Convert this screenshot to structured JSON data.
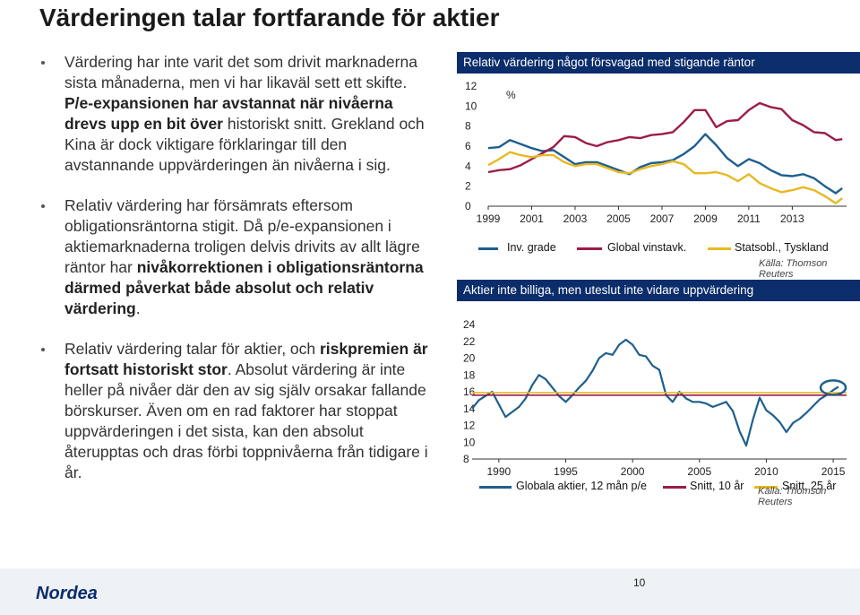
{
  "slide": {
    "title": "Värderingen talar fortfarande för aktier",
    "page_number": "10",
    "logo_text": "Nordea"
  },
  "bullets": [
    {
      "segments": [
        {
          "t": "Värdering har inte varit det som drivit marknaderna sista månaderna, men vi har likaväl sett ett skifte. ",
          "b": false
        },
        {
          "t": "P/e-expansionen har avstannat när nivåerna drevs upp en bit över",
          "b": true
        },
        {
          "t": " historiskt snitt. Grekland och Kina är dock viktigare förklaringar till den avstannande uppvärderingen än nivåerna i sig.",
          "b": false
        }
      ]
    },
    {
      "segments": [
        {
          "t": "Relativ värdering har försämrats eftersom obligationsräntorna stigit. Då p/e-expansionen i aktiemarknaderna troligen delvis drivits av allt lägre räntor har ",
          "b": false
        },
        {
          "t": "nivåkorrektionen i obligationsräntorna därmed påverkat både absolut och relativ värdering",
          "b": true
        },
        {
          "t": ".",
          "b": false
        }
      ]
    },
    {
      "segments": [
        {
          "t": "Relativ värdering talar för aktier, och ",
          "b": false
        },
        {
          "t": "riskpremien är fortsatt historiskt stor",
          "b": true
        },
        {
          "t": ". Absolut värdering är inte heller på nivåer där den av sig själv orsakar fallande börskurser. Även om en rad faktorer har stoppat uppvärderingen i det sista, kan den absolut återupptas och dras förbi toppnivåerna från tidigare i år.",
          "b": false
        }
      ]
    }
  ],
  "chart_data": [
    {
      "type": "line",
      "title": "Relativ värdering något försvagad med stigande räntor",
      "ylabel": "%",
      "source": "Källa: Thomson Reuters",
      "xlim": [
        1999,
        2015.5
      ],
      "ylim": [
        0,
        12
      ],
      "xticks": [
        1999,
        2001,
        2003,
        2005,
        2007,
        2009,
        2011,
        2013
      ],
      "xtick_labels": [
        "1999",
        "2001",
        "2003",
        "2005",
        "2007",
        "2009",
        "2011",
        "2013"
      ],
      "yticks": [
        0,
        2,
        4,
        6,
        8,
        10,
        12
      ],
      "ytick_labels": [
        "0",
        "2",
        "4",
        "6",
        "8",
        "10",
        "12"
      ],
      "series": [
        {
          "name": "Inv. grade",
          "color": "#1d5f8f",
          "x": [
            1999,
            1999.5,
            2000,
            2000.5,
            2001,
            2001.5,
            2002,
            2002.5,
            2003,
            2003.5,
            2004,
            2004.5,
            2005,
            2005.5,
            2006,
            2006.5,
            2007,
            2007.5,
            2008,
            2008.5,
            2009,
            2009.5,
            2010,
            2010.5,
            2011,
            2011.5,
            2012,
            2012.5,
            2013,
            2013.5,
            2014,
            2014.5,
            2015,
            2015.3
          ],
          "y": [
            5.8,
            5.9,
            6.6,
            6.2,
            5.8,
            5.5,
            5.6,
            4.9,
            4.2,
            4.4,
            4.4,
            4.0,
            3.6,
            3.2,
            3.9,
            4.3,
            4.4,
            4.6,
            5.2,
            6.0,
            7.2,
            6.1,
            4.8,
            4.0,
            4.7,
            4.3,
            3.6,
            3.1,
            3.0,
            3.2,
            2.8,
            2.0,
            1.3,
            1.8
          ]
        },
        {
          "name": "Global vinstavk.",
          "color": "#9b1c48",
          "x": [
            1999,
            1999.5,
            2000,
            2000.5,
            2001,
            2001.5,
            2002,
            2002.5,
            2003,
            2003.5,
            2004,
            2004.5,
            2005,
            2005.5,
            2006,
            2006.5,
            2007,
            2007.5,
            2008,
            2008.5,
            2009,
            2009.5,
            2010,
            2010.5,
            2011,
            2011.5,
            2012,
            2012.5,
            2013,
            2013.5,
            2014,
            2014.5,
            2015,
            2015.3
          ],
          "y": [
            3.4,
            3.6,
            3.7,
            4.1,
            4.7,
            5.3,
            5.9,
            7.0,
            6.9,
            6.3,
            6.0,
            6.4,
            6.6,
            6.9,
            6.8,
            7.1,
            7.2,
            7.4,
            8.4,
            9.6,
            9.6,
            7.9,
            8.5,
            8.6,
            9.6,
            10.3,
            9.9,
            9.7,
            8.6,
            8.1,
            7.4,
            7.3,
            6.6,
            6.7
          ]
        },
        {
          "name": "Statsobl., Tyskland",
          "color": "#e8b923",
          "x": [
            1999,
            1999.5,
            2000,
            2000.5,
            2001,
            2001.5,
            2002,
            2002.5,
            2003,
            2003.5,
            2004,
            2004.5,
            2005,
            2005.5,
            2006,
            2006.5,
            2007,
            2007.5,
            2008,
            2008.5,
            2009,
            2009.5,
            2010,
            2010.5,
            2011,
            2011.5,
            2012,
            2012.5,
            2013,
            2013.5,
            2014,
            2014.5,
            2015,
            2015.3
          ],
          "y": [
            4.1,
            4.7,
            5.4,
            5.1,
            4.9,
            5.1,
            5.1,
            4.4,
            4.0,
            4.2,
            4.2,
            3.8,
            3.4,
            3.3,
            3.7,
            4.0,
            4.2,
            4.5,
            4.2,
            3.3,
            3.3,
            3.4,
            3.1,
            2.5,
            3.2,
            2.3,
            1.8,
            1.4,
            1.6,
            1.9,
            1.6,
            1.0,
            0.3,
            0.8
          ]
        }
      ]
    },
    {
      "type": "line",
      "title": "Aktier inte billiga, men uteslut inte vidare uppvärdering",
      "source": "Källa: Thomson Reuters",
      "xlim": [
        1988,
        2016
      ],
      "ylim": [
        8,
        24
      ],
      "xticks": [
        1990,
        1995,
        2000,
        2005,
        2010,
        2015
      ],
      "xtick_labels": [
        "1990",
        "1995",
        "2000",
        "2005",
        "2010",
        "2015"
      ],
      "yticks": [
        8,
        10,
        12,
        14,
        16,
        18,
        20,
        22,
        24
      ],
      "ytick_labels": [
        "8",
        "10",
        "12",
        "14",
        "16",
        "18",
        "20",
        "22",
        "24"
      ],
      "series": [
        {
          "name": "Globala aktier, 12 mån p/e",
          "color": "#1d5f8f",
          "x": [
            1988,
            1988.5,
            1989,
            1989.5,
            1990,
            1990.5,
            1991,
            1991.5,
            1992,
            1992.5,
            1993,
            1993.5,
            1994,
            1994.5,
            1995,
            1995.5,
            1996,
            1996.5,
            1997,
            1997.5,
            1998,
            1998.5,
            1999,
            1999.5,
            2000,
            2000.5,
            2001,
            2001.5,
            2002,
            2002.5,
            2003,
            2003.5,
            2004,
            2004.5,
            2005,
            2005.5,
            2006,
            2006.5,
            2007,
            2007.5,
            2008,
            2008.5,
            2009,
            2009.5,
            2010,
            2010.5,
            2011,
            2011.5,
            2012,
            2012.5,
            2013,
            2013.5,
            2014,
            2014.5,
            2015,
            2015.4
          ],
          "y": [
            14,
            15,
            15.5,
            16,
            14.5,
            13,
            13.6,
            14.2,
            15.2,
            16.8,
            18,
            17.5,
            16.5,
            15.5,
            14.8,
            15.6,
            16.5,
            17.3,
            18.5,
            20,
            20.6,
            20.4,
            21.6,
            22.2,
            21.6,
            20.4,
            20.2,
            19.1,
            18.6,
            15.6,
            14.8,
            16,
            15.2,
            14.8,
            14.8,
            14.6,
            14.2,
            14.5,
            14.8,
            13.7,
            11.3,
            9.6,
            12.7,
            15.3,
            13.8,
            13.2,
            12.4,
            11.2,
            12.3,
            12.8,
            13.5,
            14.3,
            15.1,
            15.6,
            16.2,
            16.6
          ]
        },
        {
          "name": "Snitt, 10 år",
          "color": "#9b1c48",
          "x": [
            1988,
            2016
          ],
          "y": [
            15.6,
            15.6
          ]
        },
        {
          "name": "Snitt, 25 år",
          "color": "#e8b923",
          "x": [
            1988,
            2016
          ],
          "y": [
            15.9,
            15.9
          ]
        }
      ]
    }
  ]
}
